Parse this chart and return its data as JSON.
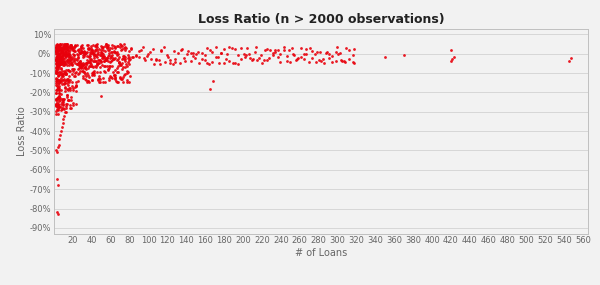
{
  "title": "Loss Ratio (n > 2000 observations)",
  "xlabel": "# of Loans",
  "ylabel": "Loss Ratio",
  "xlim": [
    0,
    565
  ],
  "ylim": [
    -0.93,
    0.13
  ],
  "xticks": [
    0,
    20,
    40,
    60,
    80,
    100,
    120,
    140,
    160,
    180,
    200,
    220,
    240,
    260,
    280,
    300,
    320,
    340,
    360,
    380,
    400,
    420,
    440,
    460,
    480,
    500,
    520,
    540,
    560
  ],
  "yticks": [
    0.1,
    0.0,
    -0.1,
    -0.2,
    -0.3,
    -0.4,
    -0.5,
    -0.6,
    -0.7,
    -0.8,
    -0.9
  ],
  "dot_color": "#e8000b",
  "background_color": "#f2f2f2",
  "border_color": "#c0c0c0",
  "title_fontsize": 9,
  "label_fontsize": 7,
  "tick_fontsize": 6
}
